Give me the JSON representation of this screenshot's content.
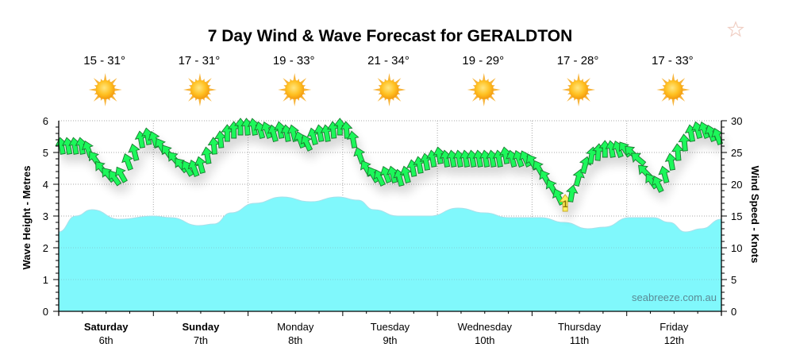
{
  "title": "7 Day Wind & Wave Forecast for GERALDTON",
  "favorite_icon": "star-outline-icon",
  "weather_icon": "sun-icon",
  "days": [
    {
      "temp": "15 - 31°",
      "name": "Saturday",
      "date": "6th",
      "bold": true
    },
    {
      "temp": "17 - 31°",
      "name": "Sunday",
      "date": "7th",
      "bold": true
    },
    {
      "temp": "19 - 33°",
      "name": "Monday",
      "date": "8th",
      "bold": false
    },
    {
      "temp": "21 - 34°",
      "name": "Tuesday",
      "date": "9th",
      "bold": false
    },
    {
      "temp": "19 - 29°",
      "name": "Wednesday",
      "date": "10th",
      "bold": false
    },
    {
      "temp": "17 - 28°",
      "name": "Thursday",
      "date": "11th",
      "bold": false
    },
    {
      "temp": "17 - 33°",
      "name": "Friday",
      "date": "12th",
      "bold": false
    }
  ],
  "credit": "seabreeze.com.au",
  "colors": {
    "wave_fill": "#80f8fc",
    "wave_line": "#a8e0ea",
    "arrow_fill": "#1ef75a",
    "arrow_stroke": "#1a7a30",
    "arrow_highlight": "#fbf060",
    "grid": "#aaaaaa"
  },
  "chart_data": {
    "type": "area",
    "title": "7 Day Wind & Wave Forecast for GERALDTON",
    "ylabel": "Wave Height - Metres",
    "y2label": "Wind Speed - Knots",
    "ylim": [
      0,
      6
    ],
    "y2lim": [
      0,
      30
    ],
    "yticks": [
      "0",
      "1",
      "2",
      "3",
      "4",
      "5",
      "6"
    ],
    "y2ticks": [
      "0",
      "5",
      "10",
      "15",
      "20",
      "25",
      "30"
    ],
    "xlim_days": [
      0,
      7
    ],
    "grid": true,
    "wave": {
      "name": "Wave Height",
      "x_days": [
        0,
        0.18,
        0.35,
        0.64,
        1.0,
        1.18,
        1.48,
        1.64,
        1.82,
        2.07,
        2.36,
        2.66,
        2.95,
        3.16,
        3.33,
        3.58,
        3.92,
        4.22,
        4.5,
        4.75,
        5.09,
        5.34,
        5.59,
        5.76,
        6.03,
        6.28,
        6.45,
        6.62,
        6.79,
        7.0
      ],
      "values": [
        2.5,
        3.0,
        3.2,
        2.9,
        3.0,
        2.95,
        2.7,
        2.75,
        3.1,
        3.4,
        3.6,
        3.45,
        3.6,
        3.5,
        3.2,
        3.0,
        3.0,
        3.25,
        3.1,
        2.95,
        2.95,
        2.8,
        2.6,
        2.65,
        2.95,
        2.95,
        2.8,
        2.5,
        2.6,
        2.9
      ]
    },
    "wind": {
      "name": "Wind Speed",
      "x_days": [
        0.03,
        0.1,
        0.17,
        0.24,
        0.31,
        0.38,
        0.45,
        0.52,
        0.59,
        0.66,
        0.73,
        0.8,
        0.87,
        0.94,
        1.01,
        1.08,
        1.15,
        1.22,
        1.29,
        1.36,
        1.43,
        1.5,
        1.57,
        1.64,
        1.71,
        1.78,
        1.85,
        1.92,
        1.99,
        2.06,
        2.13,
        2.2,
        2.27,
        2.34,
        2.41,
        2.48,
        2.55,
        2.62,
        2.69,
        2.76,
        2.83,
        2.9,
        2.97,
        3.04,
        3.11,
        3.18,
        3.25,
        3.32,
        3.39,
        3.46,
        3.53,
        3.6,
        3.67,
        3.74,
        3.81,
        3.88,
        3.95,
        4.02,
        4.09,
        4.16,
        4.23,
        4.3,
        4.37,
        4.44,
        4.51,
        4.58,
        4.65,
        4.72,
        4.79,
        4.86,
        4.93,
        5.0,
        5.07,
        5.14,
        5.21,
        5.28,
        5.35,
        5.42,
        5.49,
        5.56,
        5.63,
        5.7,
        5.77,
        5.84,
        5.91,
        5.98,
        6.05,
        6.12,
        6.19,
        6.26,
        6.33,
        6.4,
        6.47,
        6.54,
        6.61,
        6.68,
        6.75,
        6.82,
        6.89,
        6.96
      ],
      "values": [
        26,
        26,
        26,
        26,
        25.5,
        24,
        22.5,
        21.5,
        21,
        21.5,
        23.5,
        25,
        27,
        27.5,
        27,
        26,
        25,
        24,
        23,
        22.5,
        22.5,
        23,
        24.5,
        26,
        27,
        28,
        28.5,
        29,
        29,
        29,
        28.5,
        28.5,
        28,
        28.5,
        28,
        28,
        27,
        26.5,
        27.5,
        28,
        28,
        28.5,
        29,
        28.5,
        27,
        24.5,
        22.5,
        21.5,
        21,
        21.5,
        21.5,
        21,
        21.5,
        22.5,
        23,
        23.5,
        24,
        24.5,
        24,
        24,
        24,
        24,
        24,
        24,
        24,
        24,
        24,
        24.5,
        24,
        24,
        24,
        23.5,
        22.5,
        21,
        19.5,
        18,
        17,
        18.5,
        21,
        23,
        24.5,
        25,
        25.5,
        25.5,
        25.5,
        25.5,
        25,
        24,
        22,
        20.5,
        20,
        21.5,
        23.5,
        25,
        26.5,
        28,
        28.5,
        28.5,
        28,
        27.5
      ],
      "direction_deg": [
        350,
        350,
        350,
        350,
        340,
        325,
        320,
        320,
        325,
        330,
        340,
        345,
        350,
        350,
        340,
        330,
        325,
        320,
        320,
        330,
        340,
        345,
        350,
        355,
        355,
        0,
        0,
        0,
        355,
        350,
        345,
        340,
        345,
        350,
        350,
        345,
        340,
        335,
        345,
        350,
        350,
        355,
        0,
        355,
        350,
        340,
        330,
        330,
        335,
        340,
        345,
        345,
        345,
        350,
        350,
        350,
        350,
        350,
        350,
        350,
        350,
        350,
        350,
        350,
        350,
        350,
        350,
        350,
        345,
        340,
        335,
        330,
        330,
        330,
        330,
        335,
        0,
        10,
        15,
        15,
        10,
        5,
        0,
        350,
        340,
        325,
        315,
        310,
        315,
        325,
        335,
        345,
        350,
        355,
        355,
        350,
        345,
        340,
        340,
        340
      ],
      "highlight_index": 76,
      "highlight_label": "1"
    },
    "x_categories": [
      "Saturday 6th",
      "Sunday 7th",
      "Monday 8th",
      "Tuesday 9th",
      "Wednesday 10th",
      "Thursday 11th",
      "Friday 12th"
    ]
  }
}
